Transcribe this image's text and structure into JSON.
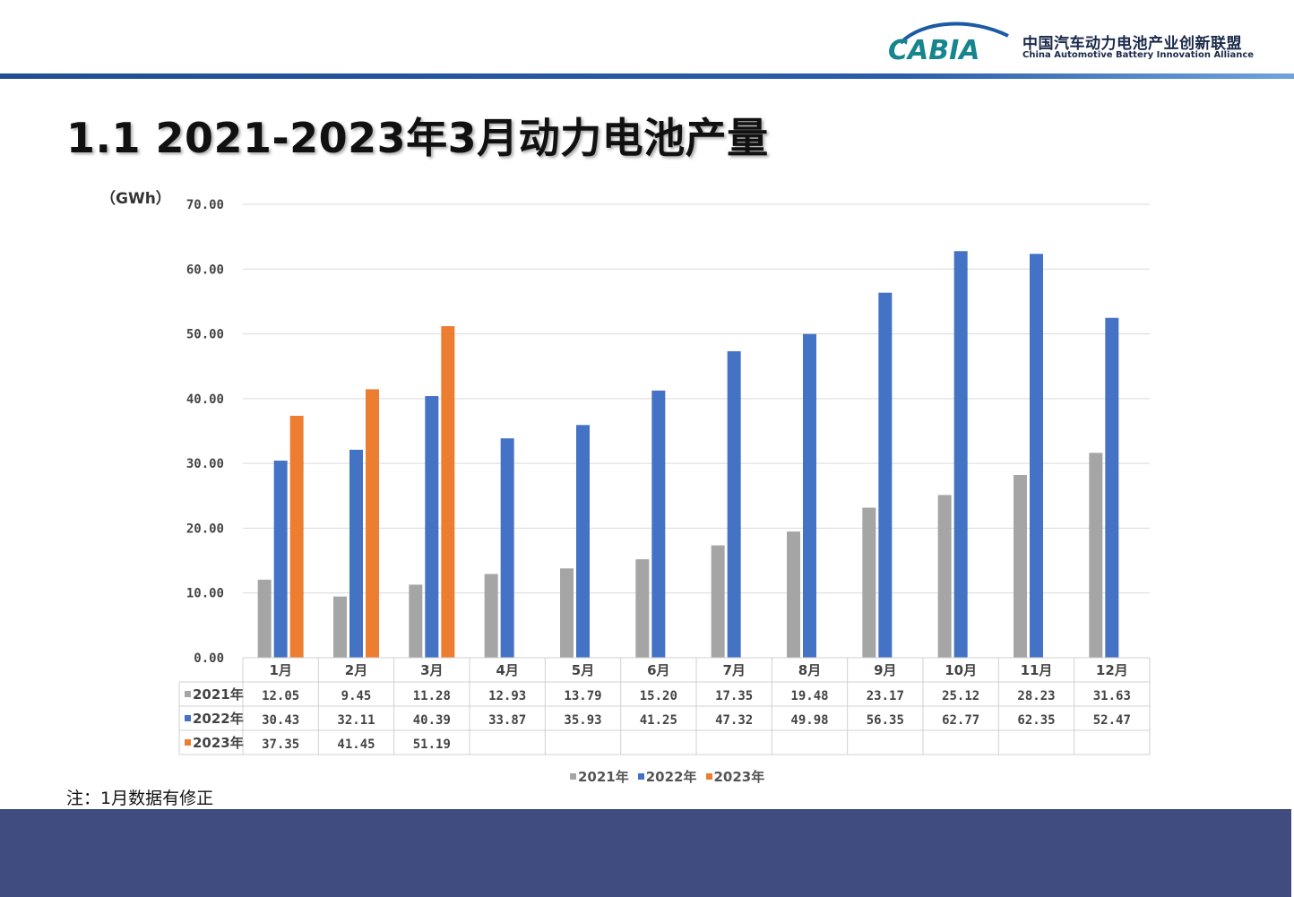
{
  "header": {
    "logo_text": "CABIA",
    "org_cn": "中国汽车动力电池产业创新联盟",
    "org_en": "China Automotive Battery Innovation Alliance"
  },
  "title": "1.1 2021-2023年3月动力电池产量",
  "unit": "（GWh）",
  "note": "注：1月数据有修正",
  "colors": {
    "s2021": "#a5a5a5",
    "s2022": "#4472c4",
    "s2023": "#ed7d31",
    "grid": "#d9d9d9",
    "footer": "#404b7f"
  },
  "chart_data": {
    "type": "bar",
    "categories": [
      "1月",
      "2月",
      "3月",
      "4月",
      "5月",
      "6月",
      "7月",
      "8月",
      "9月",
      "10月",
      "11月",
      "12月"
    ],
    "series": [
      {
        "name": "2021年",
        "values": [
          12.05,
          9.45,
          11.28,
          12.93,
          13.79,
          15.2,
          17.35,
          19.48,
          23.17,
          25.12,
          28.23,
          31.63
        ],
        "labels": [
          "12.05",
          "9.45",
          "11.28",
          "12.93",
          "13.79",
          "15.20",
          "17.35",
          "19.48",
          "23.17",
          "25.12",
          "28.23",
          "31.63"
        ]
      },
      {
        "name": "2022年",
        "values": [
          30.43,
          32.11,
          40.39,
          33.87,
          35.93,
          41.25,
          47.32,
          49.98,
          56.35,
          62.77,
          62.35,
          52.47
        ],
        "labels": [
          "30.43",
          "32.11",
          "40.39",
          "33.87",
          "35.93",
          "41.25",
          "47.32",
          "49.98",
          "56.35",
          "62.77",
          "62.35",
          "52.47"
        ]
      },
      {
        "name": "2023年",
        "values": [
          37.35,
          41.45,
          51.19,
          null,
          null,
          null,
          null,
          null,
          null,
          null,
          null,
          null
        ],
        "labels": [
          "37.35",
          "41.45",
          "51.19",
          "",
          "",
          "",
          "",
          "",
          "",
          "",
          "",
          ""
        ]
      }
    ],
    "ylim": [
      0,
      70
    ],
    "yticks": [
      "0.00",
      "10.00",
      "20.00",
      "30.00",
      "40.00",
      "50.00",
      "60.00",
      "70.00"
    ],
    "ylabel": "（GWh）",
    "grid": true,
    "legend": "bottom",
    "data_table": true
  }
}
